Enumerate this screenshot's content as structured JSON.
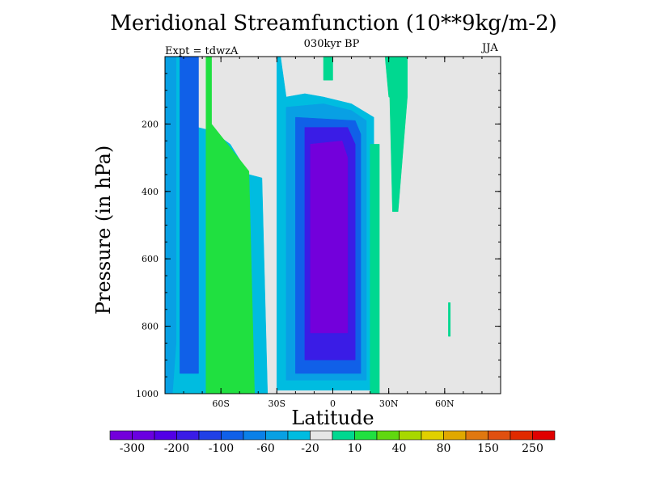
{
  "chart_data": {
    "type": "heatmap",
    "title": "Meridional Streamfunction (10**9kg/m-2)",
    "subtitle": "030kyr BP",
    "left_note": "Expt = tdwzA",
    "right_note": "JJA",
    "xlabel": "Latitude",
    "ylabel": "Pressure (in hPa)",
    "x_ticks": [
      {
        "value": -60,
        "label": "60S"
      },
      {
        "value": -30,
        "label": "30S"
      },
      {
        "value": 0,
        "label": "0"
      },
      {
        "value": 30,
        "label": "30N"
      },
      {
        "value": 60,
        "label": "60N"
      }
    ],
    "xlim": [
      -90,
      90
    ],
    "y_ticks": [
      200,
      400,
      600,
      800,
      1000
    ],
    "ylim": [
      0,
      1000
    ],
    "y_reversed": true,
    "colorbar": {
      "colors": [
        "#7300db",
        "#6a00e0",
        "#5200e6",
        "#3a1ce6",
        "#2040e6",
        "#1060e8",
        "#0a80e8",
        "#08a0e4",
        "#00bce0",
        "#e6e6e6",
        "#00d890",
        "#20e040",
        "#60d810",
        "#a8d800",
        "#e0d000",
        "#e0a800",
        "#e07810",
        "#e05010",
        "#e02a00",
        "#e00000"
      ],
      "labels": [
        "-300",
        "-200",
        "-100",
        "-60",
        "-20",
        "10",
        "40",
        "80",
        "150",
        "250"
      ]
    },
    "regions": [
      {
        "level": 10,
        "color": "#e6e6e6",
        "points": [
          [
            -90,
            0
          ],
          [
            90,
            0
          ],
          [
            90,
            1000
          ],
          [
            -90,
            1000
          ]
        ]
      },
      {
        "level": -20,
        "color": "#00bce0",
        "points": [
          [
            -90,
            0
          ],
          [
            -80,
            0
          ],
          [
            -80,
            200
          ],
          [
            -65,
            220
          ],
          [
            -55,
            260
          ],
          [
            -45,
            350
          ],
          [
            -38,
            360
          ],
          [
            -35,
            1000
          ],
          [
            -90,
            1000
          ]
        ]
      },
      {
        "level": -60,
        "color": "#08a0e4",
        "points": [
          [
            -90,
            0
          ],
          [
            -84,
            0
          ],
          [
            -84,
            850
          ],
          [
            -86,
            1000
          ],
          [
            -90,
            1000
          ]
        ]
      },
      {
        "level": -100,
        "color": "#1060e8",
        "points": [
          [
            -82,
            0
          ],
          [
            -72,
            0
          ],
          [
            -72,
            940
          ],
          [
            -82,
            940
          ]
        ]
      },
      {
        "level": 40,
        "color": "#20e040",
        "points": [
          [
            -68,
            0
          ],
          [
            -65,
            0
          ],
          [
            -65,
            200
          ],
          [
            -45,
            340
          ],
          [
            -42,
            1000
          ],
          [
            -68,
            1000
          ]
        ]
      },
      {
        "level": -20,
        "color": "#00bce0",
        "points": [
          [
            -30,
            0
          ],
          [
            -28,
            0
          ],
          [
            -25,
            120
          ],
          [
            -15,
            110
          ],
          [
            -5,
            120
          ],
          [
            10,
            140
          ],
          [
            22,
            180
          ],
          [
            22,
            860
          ],
          [
            20,
            990
          ],
          [
            -30,
            990
          ]
        ]
      },
      {
        "level": -60,
        "color": "#08a0e4",
        "points": [
          [
            -25,
            150
          ],
          [
            -5,
            140
          ],
          [
            10,
            160
          ],
          [
            18,
            190
          ],
          [
            18,
            960
          ],
          [
            -25,
            960
          ]
        ]
      },
      {
        "level": -100,
        "color": "#1060e8",
        "points": [
          [
            -20,
            180
          ],
          [
            12,
            190
          ],
          [
            15,
            230
          ],
          [
            15,
            940
          ],
          [
            -20,
            940
          ]
        ]
      },
      {
        "level": -200,
        "color": "#3a1ce6",
        "points": [
          [
            -15,
            210
          ],
          [
            8,
            210
          ],
          [
            12,
            260
          ],
          [
            12,
            900
          ],
          [
            -15,
            900
          ]
        ]
      },
      {
        "level": -300,
        "color": "#7300db",
        "points": [
          [
            -12,
            260
          ],
          [
            5,
            250
          ],
          [
            8,
            300
          ],
          [
            8,
            820
          ],
          [
            -12,
            820
          ]
        ]
      },
      {
        "level": 10,
        "color": "#00d890",
        "points": [
          [
            -5,
            0
          ],
          [
            0,
            0
          ],
          [
            0,
            70
          ],
          [
            -5,
            70
          ]
        ]
      },
      {
        "level": 10,
        "color": "#00d890",
        "points": [
          [
            28,
            0
          ],
          [
            36,
            0
          ],
          [
            36,
            130
          ],
          [
            30,
            120
          ]
        ]
      },
      {
        "level": 10,
        "color": "#00d890",
        "points": [
          [
            20,
            260
          ],
          [
            25,
            260
          ],
          [
            25,
            1000
          ],
          [
            20,
            1000
          ]
        ]
      },
      {
        "level": 10,
        "color": "#00d890",
        "points": [
          [
            33,
            0
          ],
          [
            40,
            0
          ],
          [
            40,
            120
          ],
          [
            35,
            460
          ],
          [
            32,
            460
          ],
          [
            30,
            0
          ]
        ]
      },
      {
        "level": 10,
        "color": "#00d890",
        "points": [
          [
            62,
            730
          ],
          [
            63,
            730
          ],
          [
            63,
            830
          ],
          [
            62,
            830
          ]
        ]
      }
    ]
  }
}
